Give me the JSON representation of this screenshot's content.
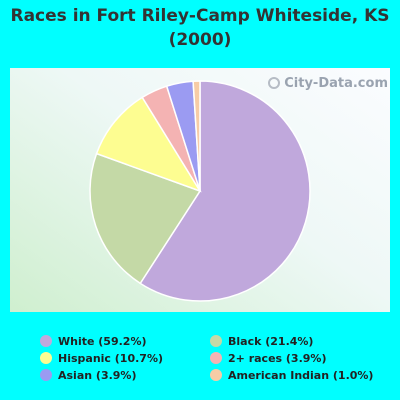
{
  "chart_data": {
    "type": "pie",
    "title": "Races in Fort Riley-Camp Whiteside, KS (2000)",
    "slices": [
      {
        "label": "White (59.2%)",
        "value": 59.2,
        "color": "#c0a8dc"
      },
      {
        "label": "Black (21.4%)",
        "value": 21.4,
        "color": "#c4d9a6"
      },
      {
        "label": "Hispanic (10.7%)",
        "value": 10.7,
        "color": "#fdfd91"
      },
      {
        "label": "2+ races (3.9%)",
        "value": 3.9,
        "color": "#f4b3b3"
      },
      {
        "label": "Asian (3.9%)",
        "value": 3.9,
        "color": "#9b9bf2"
      },
      {
        "label": "American Indian (1.0%)",
        "value": 1.0,
        "color": "#f7cca6"
      }
    ],
    "legend_order": [
      0,
      1,
      2,
      3,
      4,
      5
    ],
    "legend_placement": "bottom"
  },
  "watermark": "City-Data.com"
}
